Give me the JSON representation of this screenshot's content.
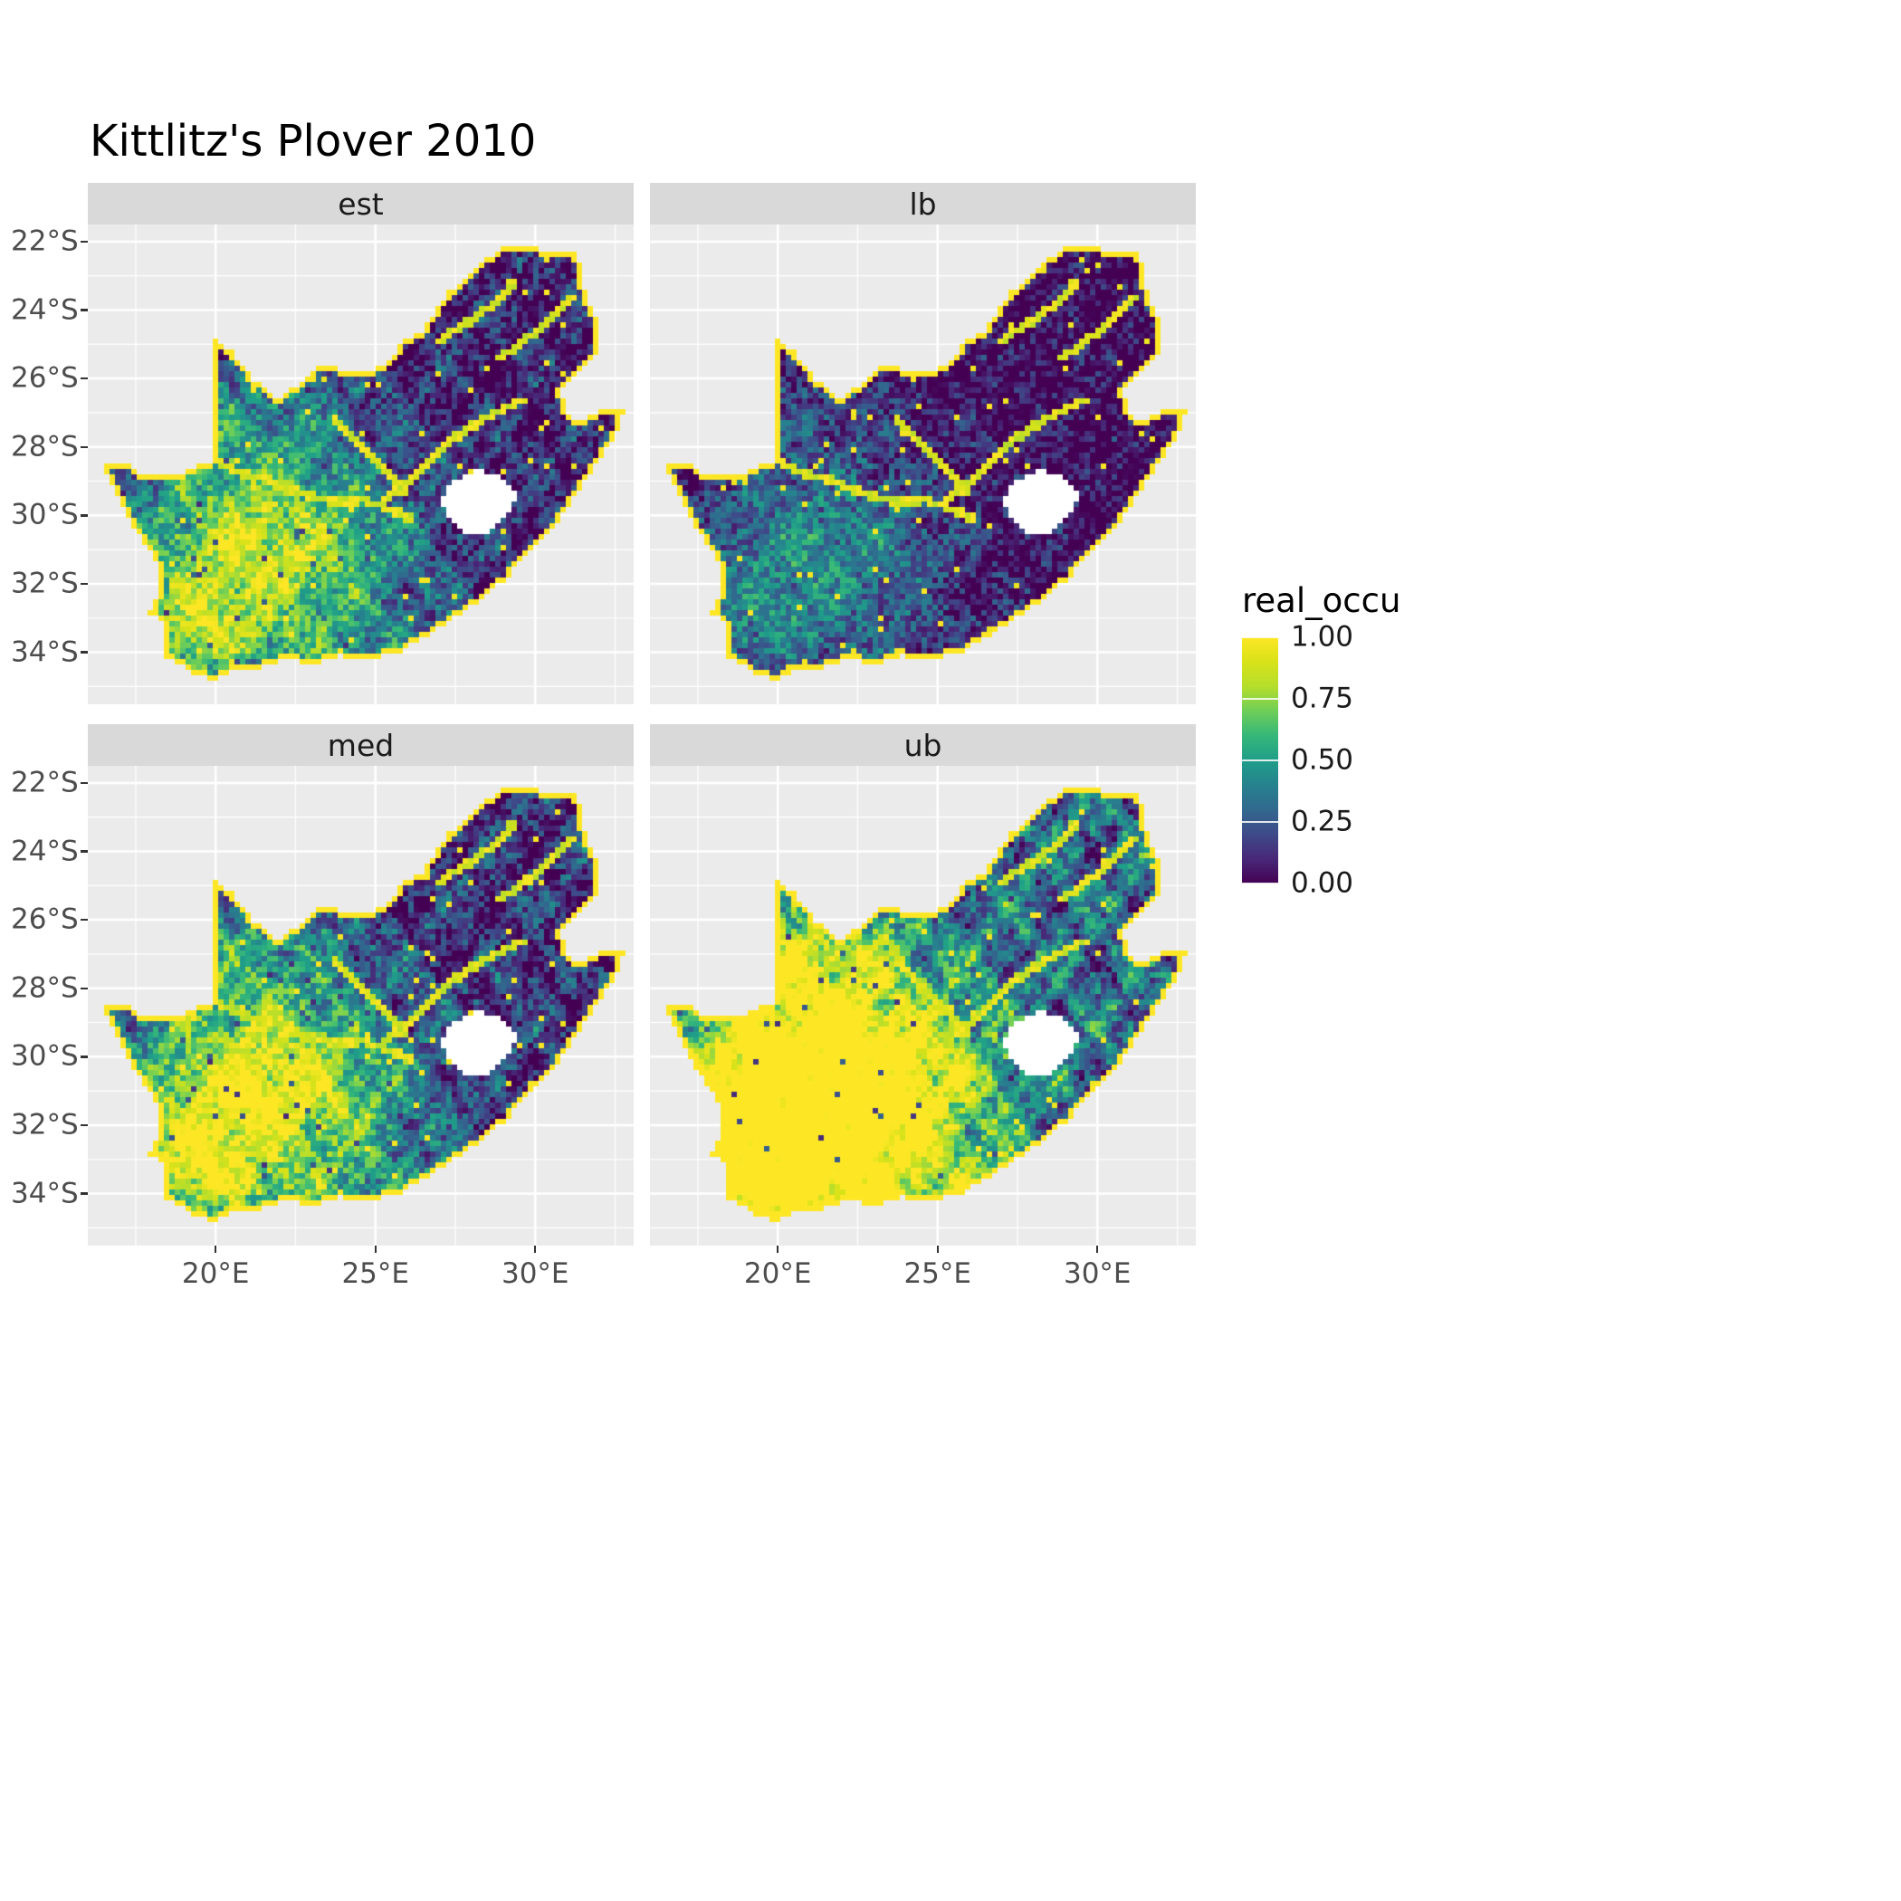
{
  "title": "Kittlitz's Plover 2010",
  "facets": [
    {
      "id": "est",
      "label": "est"
    },
    {
      "id": "lb",
      "label": "lb"
    },
    {
      "id": "med",
      "label": "med"
    },
    {
      "id": "ub",
      "label": "ub"
    }
  ],
  "legend": {
    "title": "real_occu",
    "labels": [
      "1.00",
      "0.75",
      "0.50",
      "0.25",
      "0.00"
    ],
    "values": [
      1.0,
      0.75,
      0.5,
      0.25,
      0.0
    ]
  },
  "axes": {
    "y_ticks": [
      {
        "label": "22°S",
        "lat": -22
      },
      {
        "label": "24°S",
        "lat": -24
      },
      {
        "label": "26°S",
        "lat": -26
      },
      {
        "label": "28°S",
        "lat": -28
      },
      {
        "label": "30°S",
        "lat": -30
      },
      {
        "label": "32°S",
        "lat": -32
      },
      {
        "label": "34°S",
        "lat": -34
      }
    ],
    "x_ticks": [
      {
        "label": "20°E",
        "lon": 20
      },
      {
        "label": "25°E",
        "lon": 25
      },
      {
        "label": "30°E",
        "lon": 30
      }
    ]
  },
  "colors": {
    "panel_bg": "#ebebeb",
    "strip_bg": "#d9d9d9",
    "grid": "#ffffff",
    "axis_text": "#4d4d4d",
    "na_fill": "#ffffff"
  },
  "chart_data": {
    "type": "heatmap",
    "subtype": "faceted raster occupancy map",
    "title": "Kittlitz's Plover 2010",
    "region": "South Africa (Lesotho shown as NA hole)",
    "variable": "real_occu",
    "facet_labels": [
      "est",
      "lb",
      "med",
      "ub"
    ],
    "scale": {
      "name": "viridis",
      "domain": [
        0,
        1
      ],
      "legend_breaks": [
        0,
        0.25,
        0.5,
        0.75,
        1.0
      ],
      "stops": [
        {
          "t": 0.0,
          "color": "#440154"
        },
        {
          "t": 0.1,
          "color": "#482878"
        },
        {
          "t": 0.2,
          "color": "#3e4a89"
        },
        {
          "t": 0.3,
          "color": "#31688e"
        },
        {
          "t": 0.4,
          "color": "#26828e"
        },
        {
          "t": 0.5,
          "color": "#1f9e89"
        },
        {
          "t": 0.6,
          "color": "#35b779"
        },
        {
          "t": 0.7,
          "color": "#6ece58"
        },
        {
          "t": 0.8,
          "color": "#b5de2b"
        },
        {
          "t": 0.9,
          "color": "#d8e219"
        },
        {
          "t": 1.0,
          "color": "#fde725"
        }
      ]
    },
    "x_axis": {
      "ticks": [
        20,
        25,
        30
      ],
      "tick_labels": [
        "20°E",
        "25°E",
        "30°E"
      ],
      "range": [
        16.0,
        33.08
      ]
    },
    "y_axis": {
      "ticks": [
        -22,
        -24,
        -26,
        -28,
        -30,
        -32,
        -34
      ],
      "tick_labels": [
        "22°S",
        "24°S",
        "26°S",
        "28°S",
        "30°S",
        "32°S",
        "34°S"
      ],
      "range": [
        -35.52,
        -21.5
      ]
    },
    "pattern_summary": {
      "est": "moderate occupancy; high (yellow) in west-central interior, low (dark) in north-east",
      "lb": "lower bound; overall darker version of est",
      "med": "median; slightly brighter than est",
      "ub": "upper bound; extensive high occupancy across west and south",
      "border_cells": "national boundary cells have real_occu = 1 (yellow outline)",
      "rivers": "drainage lines appear as high-value yellow curves"
    },
    "facet_value_transform": {
      "est": {
        "scale": 1.0,
        "offset": 0.0
      },
      "lb": {
        "scale": 0.55,
        "offset": -0.05
      },
      "med": {
        "scale": 1.12,
        "offset": 0.03
      },
      "ub": {
        "scale": 1.7,
        "offset": 0.15
      }
    },
    "outline": [
      [
        16.45,
        -28.6
      ],
      [
        17.1,
        -28.42
      ],
      [
        17.6,
        -28.72
      ],
      [
        18.2,
        -28.88
      ],
      [
        19.0,
        -28.74
      ],
      [
        19.55,
        -28.46
      ],
      [
        19.99,
        -28.38
      ],
      [
        19.99,
        -24.85
      ],
      [
        20.6,
        -25.3
      ],
      [
        21.2,
        -26.05
      ],
      [
        21.9,
        -26.6
      ],
      [
        22.6,
        -26.15
      ],
      [
        23.3,
        -25.62
      ],
      [
        24.0,
        -25.75
      ],
      [
        24.7,
        -25.8
      ],
      [
        25.4,
        -25.55
      ],
      [
        25.8,
        -24.95
      ],
      [
        26.45,
        -24.6
      ],
      [
        27.2,
        -23.55
      ],
      [
        27.9,
        -23.05
      ],
      [
        28.35,
        -22.6
      ],
      [
        29.0,
        -22.2
      ],
      [
        29.7,
        -22.15
      ],
      [
        30.5,
        -22.3
      ],
      [
        31.3,
        -22.35
      ],
      [
        31.6,
        -23.6
      ],
      [
        31.9,
        -24.2
      ],
      [
        32.0,
        -25.3
      ],
      [
        31.4,
        -25.72
      ],
      [
        30.85,
        -26.3
      ],
      [
        30.9,
        -27.0
      ],
      [
        31.5,
        -27.32
      ],
      [
        32.05,
        -26.85
      ],
      [
        32.85,
        -26.85
      ],
      [
        32.55,
        -27.6
      ],
      [
        32.15,
        -28.2
      ],
      [
        31.4,
        -29.2
      ],
      [
        30.6,
        -30.3
      ],
      [
        29.9,
        -31.05
      ],
      [
        29.0,
        -31.9
      ],
      [
        28.1,
        -32.6
      ],
      [
        27.1,
        -33.2
      ],
      [
        26.2,
        -33.75
      ],
      [
        25.6,
        -34.05
      ],
      [
        24.8,
        -34.2
      ],
      [
        23.8,
        -34.1
      ],
      [
        23.0,
        -34.35
      ],
      [
        22.2,
        -34.2
      ],
      [
        21.4,
        -34.45
      ],
      [
        20.5,
        -34.5
      ],
      [
        20.0,
        -34.82
      ],
      [
        19.4,
        -34.65
      ],
      [
        18.9,
        -34.35
      ],
      [
        18.45,
        -34.22
      ],
      [
        18.3,
        -33.9
      ],
      [
        18.45,
        -33.3
      ],
      [
        17.9,
        -32.8
      ],
      [
        18.3,
        -32.1
      ],
      [
        18.2,
        -31.4
      ],
      [
        17.6,
        -30.6
      ],
      [
        17.05,
        -29.7
      ]
    ],
    "hole_lesotho": [
      [
        27.0,
        -29.55
      ],
      [
        27.5,
        -28.95
      ],
      [
        28.2,
        -28.62
      ],
      [
        29.0,
        -28.92
      ],
      [
        29.45,
        -29.35
      ],
      [
        29.15,
        -29.95
      ],
      [
        28.4,
        -30.6
      ],
      [
        27.75,
        -30.5
      ],
      [
        27.25,
        -30.05
      ]
    ],
    "rivers": [
      [
        [
          19.99,
          -28.4
        ],
        [
          20.8,
          -28.75
        ],
        [
          21.7,
          -29.0
        ],
        [
          22.7,
          -29.35
        ],
        [
          23.7,
          -29.6
        ],
        [
          24.6,
          -29.55
        ],
        [
          25.4,
          -29.8
        ],
        [
          26.1,
          -30.1
        ]
      ],
      [
        [
          25.2,
          -29.7
        ],
        [
          26.0,
          -29.0
        ],
        [
          26.9,
          -28.2
        ],
        [
          27.8,
          -27.5
        ],
        [
          28.8,
          -27.0
        ],
        [
          29.6,
          -26.6
        ]
      ],
      [
        [
          23.7,
          -27.2
        ],
        [
          24.5,
          -27.9
        ],
        [
          25.3,
          -28.6
        ],
        [
          25.9,
          -29.3
        ]
      ],
      [
        [
          28.9,
          -25.4
        ],
        [
          29.8,
          -24.8
        ],
        [
          30.6,
          -24.2
        ],
        [
          31.1,
          -23.6
        ]
      ],
      [
        [
          27.0,
          -24.9
        ],
        [
          27.9,
          -24.35
        ],
        [
          28.8,
          -23.75
        ],
        [
          29.3,
          -23.2
        ]
      ]
    ]
  }
}
